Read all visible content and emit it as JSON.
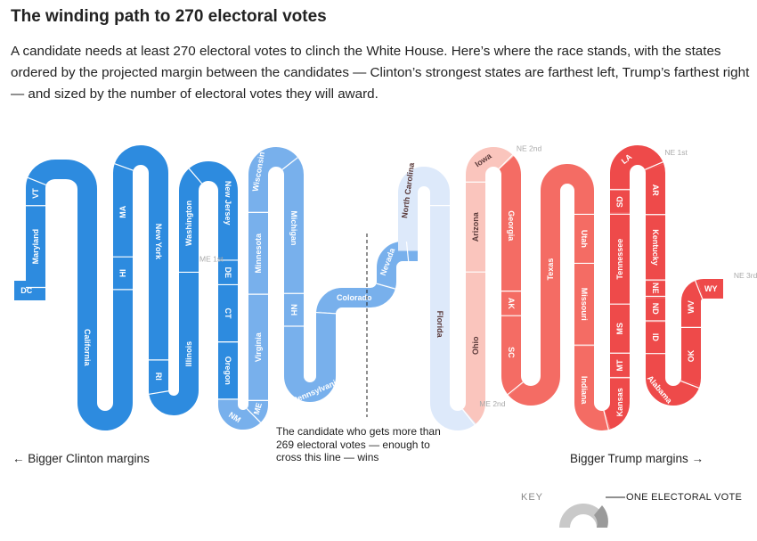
{
  "header": {
    "title": "The winding path to 270 electoral votes",
    "description": "A candidate needs at least 270 electoral votes to clinch the White House. Here’s where the race stands, with the states ordered by the projected margin between the candidates — Clinton’s strongest states are farthest left, Trump’s farthest right — and sized by the number of electoral votes they will award."
  },
  "colors": {
    "clinton_strong": "#2d8bdf",
    "clinton_likely": "#78b0ec",
    "clinton_lean": "#dde9fa",
    "trump_lean": "#fac5bd",
    "trump_likely": "#f46c64",
    "trump_strong": "#ee4a4a",
    "ghost": "#bbbbbb"
  },
  "states": [
    {
      "label": "DC",
      "votes": 3,
      "party": "clinton",
      "tier": "strong"
    },
    {
      "label": "Maryland",
      "votes": 10,
      "party": "clinton",
      "tier": "strong"
    },
    {
      "label": "VT",
      "votes": 3,
      "party": "clinton",
      "tier": "strong"
    },
    {
      "label": "California",
      "votes": 55,
      "party": "clinton",
      "tier": "strong"
    },
    {
      "label": "HI",
      "votes": 4,
      "party": "clinton",
      "tier": "strong"
    },
    {
      "label": "MA",
      "votes": 11,
      "party": "clinton",
      "tier": "strong"
    },
    {
      "label": "New York",
      "votes": 29,
      "party": "clinton",
      "tier": "strong"
    },
    {
      "label": "RI",
      "votes": 4,
      "party": "clinton",
      "tier": "strong"
    },
    {
      "label": "Illinois",
      "votes": 20,
      "party": "clinton",
      "tier": "strong"
    },
    {
      "label": "ME 1st",
      "votes": 1,
      "party": "clinton",
      "tier": "strong",
      "external": true
    },
    {
      "label": "Washington",
      "votes": 12,
      "party": "clinton",
      "tier": "strong"
    },
    {
      "label": "New Jersey",
      "votes": 14,
      "party": "clinton",
      "tier": "strong"
    },
    {
      "label": "DE",
      "votes": 3,
      "party": "clinton",
      "tier": "strong"
    },
    {
      "label": "CT",
      "votes": 7,
      "party": "clinton",
      "tier": "strong"
    },
    {
      "label": "Oregon",
      "votes": 7,
      "party": "clinton",
      "tier": "strong"
    },
    {
      "label": "NM",
      "votes": 5,
      "party": "clinton",
      "tier": "likely"
    },
    {
      "label": "ME",
      "votes": 2,
      "party": "clinton",
      "tier": "likely"
    },
    {
      "label": "Virginia",
      "votes": 13,
      "party": "clinton",
      "tier": "likely"
    },
    {
      "label": "Minnesota",
      "votes": 10,
      "party": "clinton",
      "tier": "likely"
    },
    {
      "label": "Wisconsin",
      "votes": 10,
      "party": "clinton",
      "tier": "likely"
    },
    {
      "label": "Michigan",
      "votes": 16,
      "party": "clinton",
      "tier": "likely"
    },
    {
      "label": "NH",
      "votes": 4,
      "party": "clinton",
      "tier": "likely"
    },
    {
      "label": "Pennsylvania",
      "votes": 20,
      "party": "clinton",
      "tier": "likely"
    },
    {
      "label": "Colorado",
      "votes": 9,
      "party": "clinton",
      "tier": "likely"
    },
    {
      "label": "Nevada",
      "votes": 6,
      "party": "clinton",
      "tier": "likely"
    },
    {
      "label": "North Carolina",
      "votes": 15,
      "party": "clinton",
      "tier": "lean"
    },
    {
      "label": "Florida",
      "votes": 29,
      "party": "clinton",
      "tier": "lean"
    },
    {
      "label": "ME 2nd",
      "votes": 1,
      "party": "trump",
      "tier": "lean",
      "external": true
    },
    {
      "label": "Ohio",
      "votes": 18,
      "party": "trump",
      "tier": "lean"
    },
    {
      "label": "Arizona",
      "votes": 11,
      "party": "trump",
      "tier": "lean"
    },
    {
      "label": "Iowa",
      "votes": 6,
      "party": "trump",
      "tier": "lean"
    },
    {
      "label": "NE 2nd",
      "votes": 1,
      "party": "trump",
      "tier": "likely",
      "external": true
    },
    {
      "label": "Georgia",
      "votes": 16,
      "party": "trump",
      "tier": "likely"
    },
    {
      "label": "AK",
      "votes": 3,
      "party": "trump",
      "tier": "likely"
    },
    {
      "label": "SC",
      "votes": 9,
      "party": "trump",
      "tier": "likely"
    },
    {
      "label": "Texas",
      "votes": 38,
      "party": "trump",
      "tier": "likely"
    },
    {
      "label": "Utah",
      "votes": 6,
      "party": "trump",
      "tier": "likely"
    },
    {
      "label": "Missouri",
      "votes": 10,
      "party": "trump",
      "tier": "likely"
    },
    {
      "label": "Indiana",
      "votes": 11,
      "party": "trump",
      "tier": "likely"
    },
    {
      "label": "Kansas",
      "votes": 6,
      "party": "trump",
      "tier": "strong"
    },
    {
      "label": "MT",
      "votes": 3,
      "party": "trump",
      "tier": "strong"
    },
    {
      "label": "MS",
      "votes": 6,
      "party": "trump",
      "tier": "strong"
    },
    {
      "label": "Tennessee",
      "votes": 11,
      "party": "trump",
      "tier": "strong"
    },
    {
      "label": "SD",
      "votes": 3,
      "party": "trump",
      "tier": "strong"
    },
    {
      "label": "LA",
      "votes": 8,
      "party": "trump",
      "tier": "strong"
    },
    {
      "label": "NE 1st",
      "votes": 1,
      "party": "trump",
      "tier": "strong",
      "external": true
    },
    {
      "label": "AR",
      "votes": 6,
      "party": "trump",
      "tier": "strong"
    },
    {
      "label": "Kentucky",
      "votes": 8,
      "party": "trump",
      "tier": "strong"
    },
    {
      "label": "NE",
      "votes": 2,
      "party": "trump",
      "tier": "strong"
    },
    {
      "label": "ND",
      "votes": 3,
      "party": "trump",
      "tier": "strong"
    },
    {
      "label": "ID",
      "votes": 4,
      "party": "trump",
      "tier": "strong"
    },
    {
      "label": "Alabama",
      "votes": 9,
      "party": "trump",
      "tier": "strong"
    },
    {
      "label": "OK",
      "votes": 7,
      "party": "trump",
      "tier": "strong"
    },
    {
      "label": "WV",
      "votes": 5,
      "party": "trump",
      "tier": "strong"
    },
    {
      "label": "WY",
      "votes": 3,
      "party": "trump",
      "tier": "strong"
    },
    {
      "label": "NE 3rd",
      "votes": 1,
      "party": "trump",
      "tier": "strong",
      "external": true
    }
  ],
  "annotations": {
    "line_note": "The candidate who gets more than 269 electoral votes — enough to cross this line — wins",
    "left_margin": "← Bigger Clinton margins",
    "right_margin": "Bigger Trump margins →"
  },
  "key": {
    "label": "KEY",
    "unit": "ONE ELECTORAL VOTE"
  }
}
